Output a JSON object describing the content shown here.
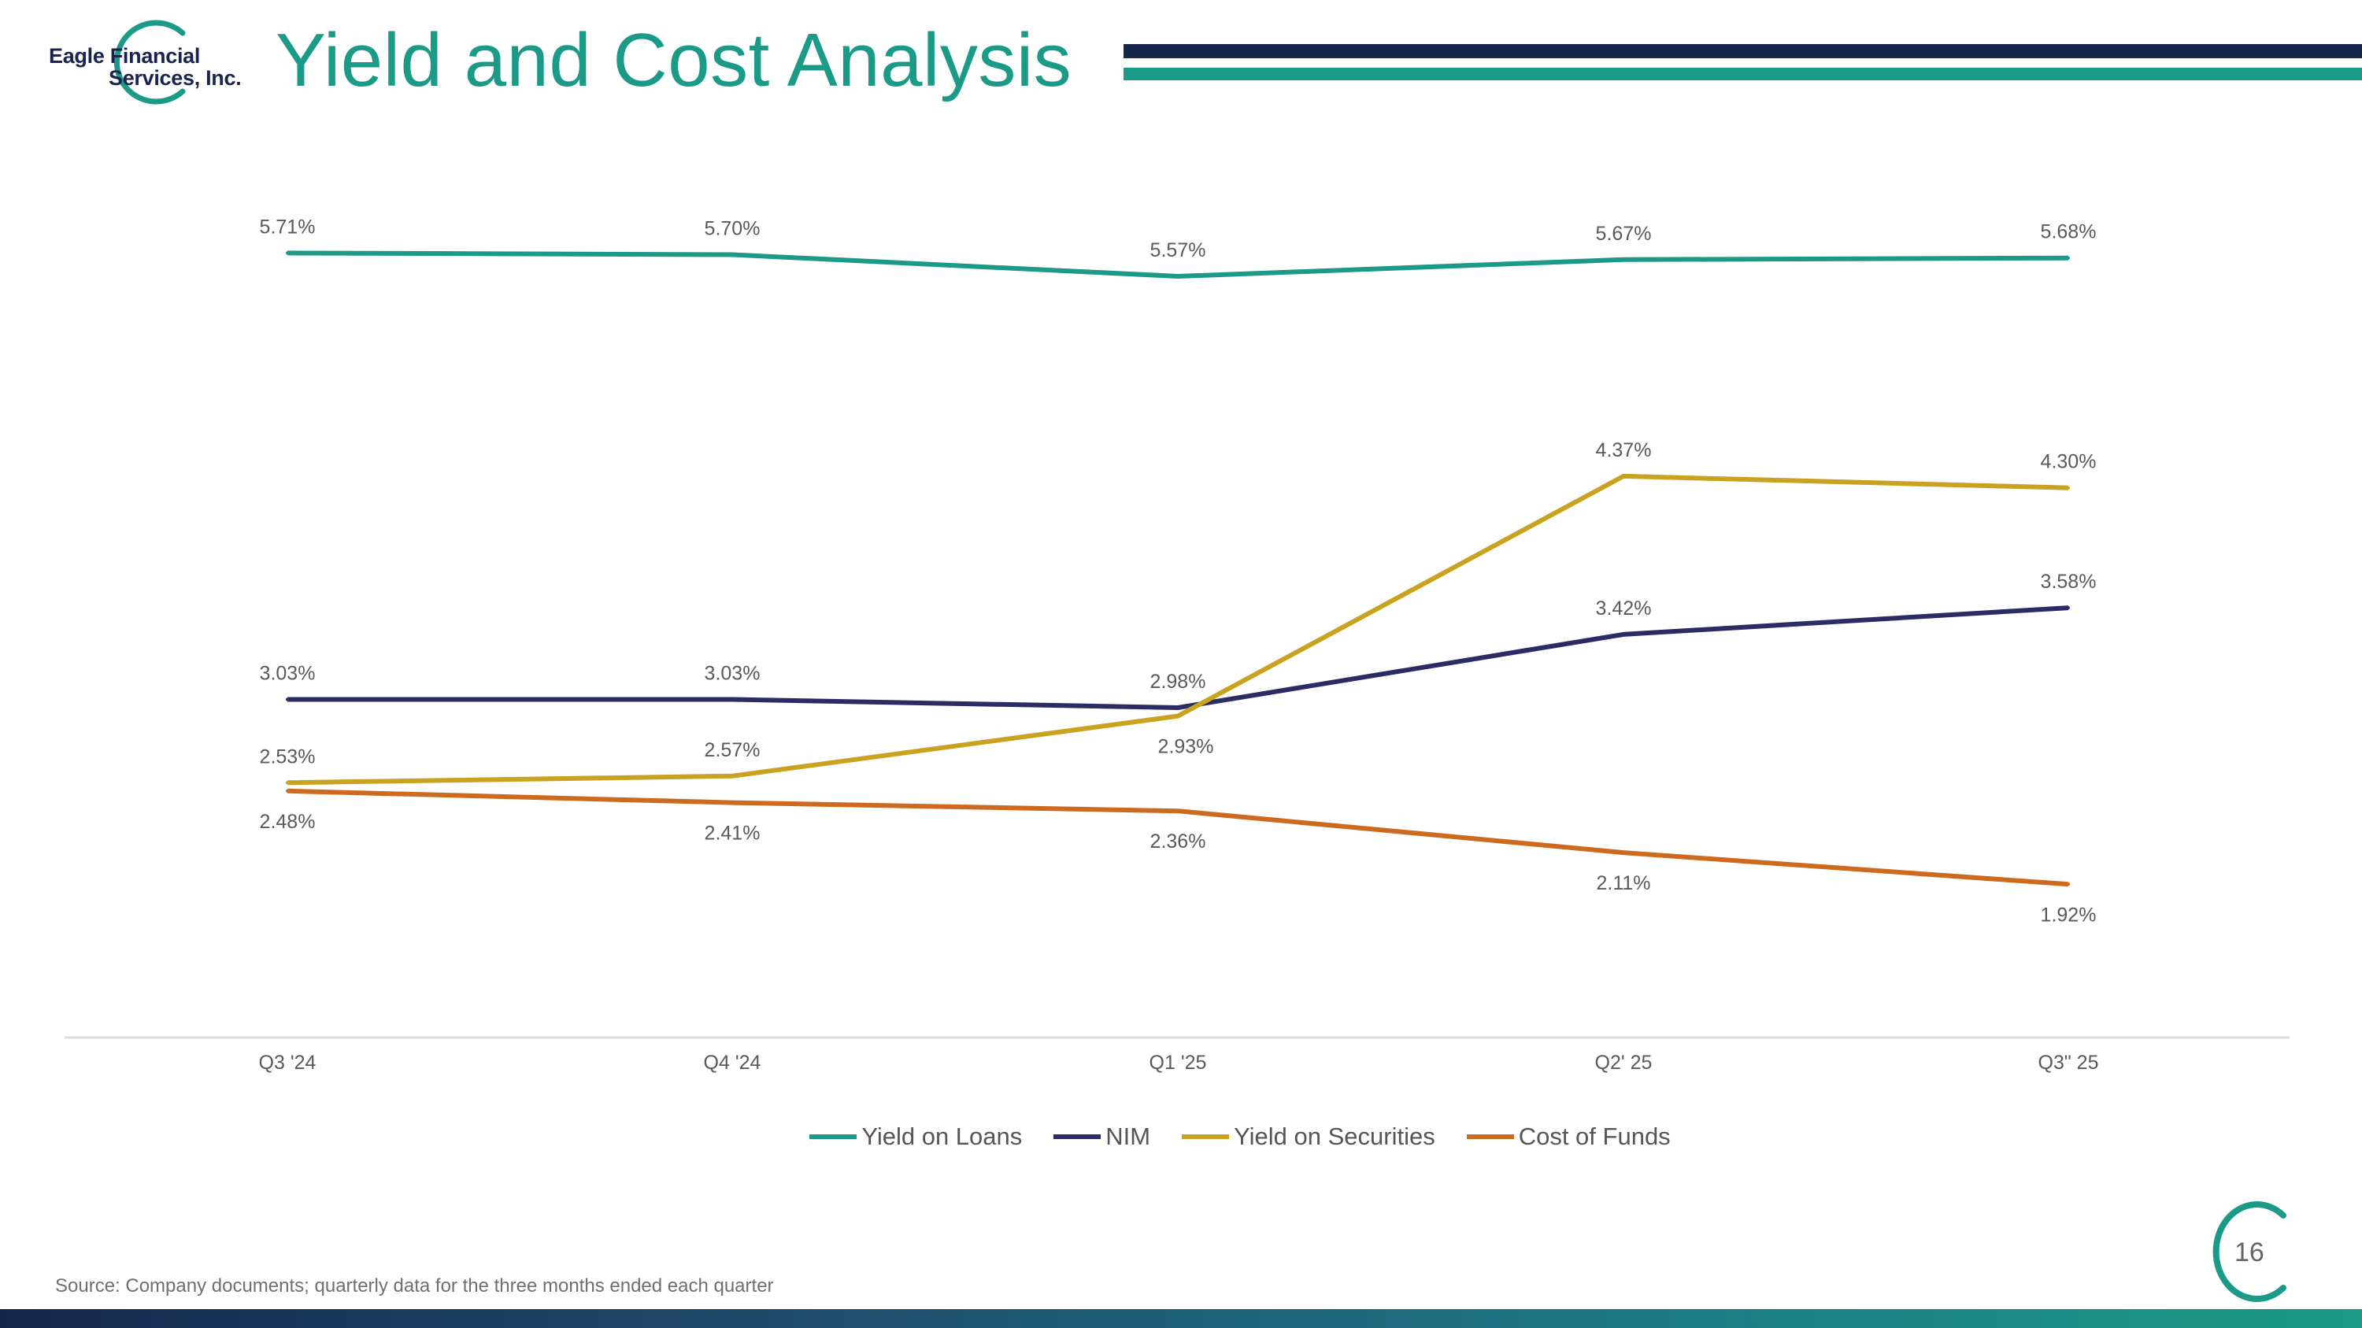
{
  "header": {
    "logo_line1": "Eagle Financial",
    "logo_line2": "Services, Inc.",
    "title": "Yield and Cost Analysis"
  },
  "colors": {
    "teal": "#1a9a87",
    "navy": "#14284b",
    "yield_on_loans": "#1a9a87",
    "nim": "#2a2d63",
    "yield_on_securities": "#c9a21f",
    "cost_of_funds": "#cd6a1f"
  },
  "chart_data": {
    "type": "line",
    "title": "",
    "xlabel": "",
    "ylabel": "",
    "categories": [
      "Q3 '24",
      "Q4 '24",
      "Q1 '25",
      "Q2' 25",
      "Q3\" 25"
    ],
    "ylim": [
      1.0,
      6.0
    ],
    "grid": false,
    "legend": "bottom-center",
    "series": [
      {
        "name": "Yield on Loans",
        "key": "yield_on_loans",
        "values": [
          5.71,
          5.7,
          5.57,
          5.67,
          5.68
        ],
        "labels": [
          "5.71%",
          "5.70%",
          "5.57%",
          "5.67%",
          "5.68%"
        ],
        "label_pos": [
          "above",
          "above",
          "above",
          "above",
          "above"
        ]
      },
      {
        "name": "NIM",
        "key": "nim",
        "values": [
          3.03,
          3.03,
          2.98,
          3.42,
          3.58
        ],
        "labels": [
          "3.03%",
          "3.03%",
          "2.98%",
          "3.42%",
          "3.58%"
        ],
        "label_pos": [
          "above",
          "above",
          "above",
          "above",
          "above"
        ]
      },
      {
        "name": "Yield on Securities",
        "key": "yield_on_securities",
        "values": [
          2.53,
          2.57,
          2.93,
          4.37,
          4.3
        ],
        "labels": [
          "2.53%",
          "2.57%",
          "2.93%",
          "4.37%",
          "4.30%"
        ],
        "label_pos": [
          "above",
          "above",
          "below",
          "above",
          "above"
        ]
      },
      {
        "name": "Cost of Funds",
        "key": "cost_of_funds",
        "values": [
          2.48,
          2.41,
          2.36,
          2.11,
          1.92
        ],
        "labels": [
          "2.48%",
          "2.41%",
          "2.36%",
          "2.11%",
          "1.92%"
        ],
        "label_pos": [
          "below",
          "below",
          "below",
          "below",
          "below"
        ]
      }
    ]
  },
  "legend": {
    "items": [
      {
        "label": "Yield on Loans",
        "key": "yield_on_loans"
      },
      {
        "label": "NIM",
        "key": "nim"
      },
      {
        "label": "Yield on Securities",
        "key": "yield_on_securities"
      },
      {
        "label": "Cost of Funds",
        "key": "cost_of_funds"
      }
    ]
  },
  "footer": {
    "source": "Source: Company documents; quarterly data for the three months ended each quarter",
    "page_number": "16"
  }
}
